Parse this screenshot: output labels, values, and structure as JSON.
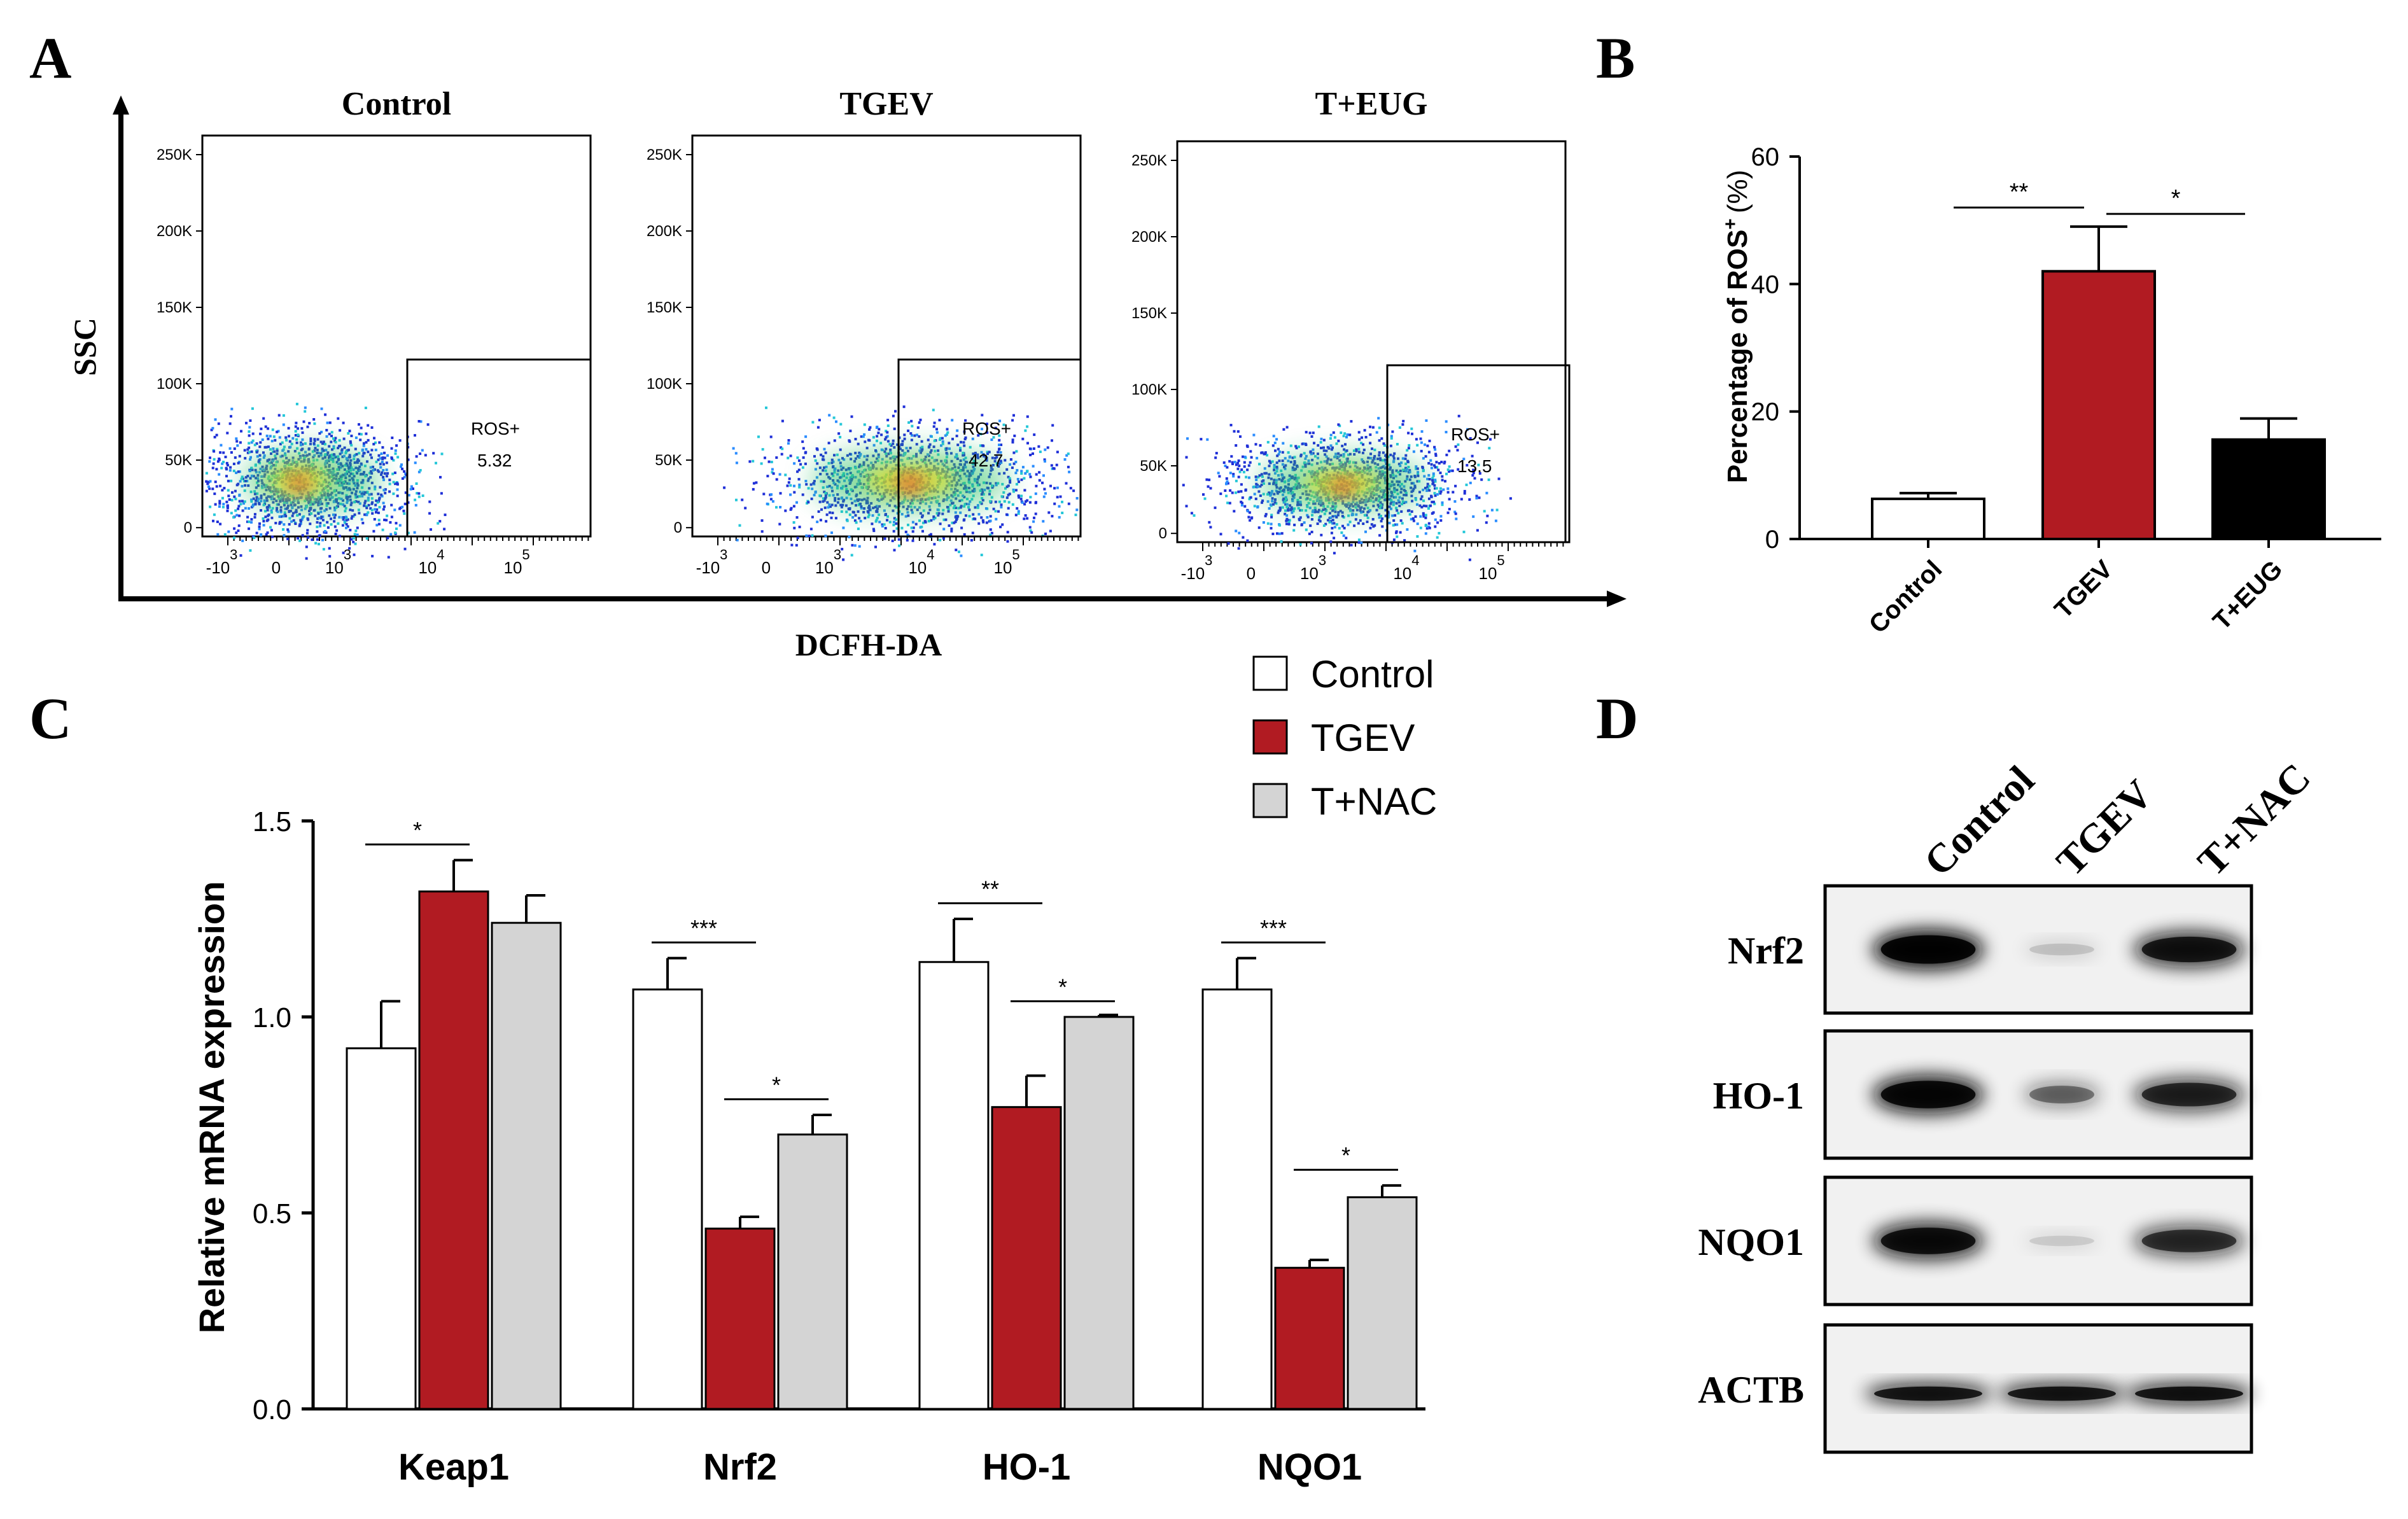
{
  "panel_labels": {
    "a": "A",
    "b": "B",
    "c": "C",
    "d": "D"
  },
  "colors": {
    "control": "#ffffff",
    "tgev": "#b11b22",
    "t_eug": "#000000",
    "t_nac": "#d4d4d4",
    "axis": "#000000"
  },
  "panel_a": {
    "y_axis_label": "SSC",
    "x_axis_label": "DCFH-DA",
    "y_ticks": [
      "250K",
      "200K",
      "150K",
      "100K",
      "50K",
      "0"
    ],
    "x_ticks": [
      {
        "base": "-10",
        "exp": "3"
      },
      {
        "base": "0",
        "exp": ""
      },
      {
        "base": "10",
        "exp": "3"
      },
      {
        "base": "10",
        "exp": "4"
      },
      {
        "base": "10",
        "exp": "5"
      }
    ],
    "gate_label": "ROS+",
    "plots": [
      {
        "title": "Control",
        "ros_value": "5.32"
      },
      {
        "title": "TGEV",
        "ros_value": "42.7"
      },
      {
        "title": "T+EUG",
        "ros_value": "13.5"
      }
    ]
  },
  "chart_data": [
    {
      "type": "bar",
      "panel": "B",
      "categories": [
        "Control",
        "TGEV",
        "T+EUG"
      ],
      "values": [
        6.3,
        42.0,
        15.6
      ],
      "errors": [
        0.9,
        7.0,
        3.3
      ],
      "ylabel_main": "Percentage of ROS",
      "ylabel_sup": "+",
      "ylabel_unit": "(%)",
      "ylim": [
        0,
        60
      ],
      "yticks": [
        0,
        20,
        40,
        60
      ],
      "bar_colors": [
        "#ffffff",
        "#b11b22",
        "#000000"
      ],
      "significance": [
        {
          "from": 0,
          "to": 1,
          "label": "**"
        },
        {
          "from": 1,
          "to": 2,
          "label": "*"
        }
      ]
    },
    {
      "type": "bar",
      "panel": "C",
      "categories": [
        "Keap1",
        "Nrf2",
        "HO-1",
        "NQO1"
      ],
      "series": [
        {
          "name": "Control",
          "color": "#ffffff",
          "values": [
            0.92,
            1.07,
            1.14,
            1.07
          ],
          "errors": [
            0.12,
            0.08,
            0.11,
            0.08
          ]
        },
        {
          "name": "TGEV",
          "color": "#b11b22",
          "values": [
            1.32,
            0.46,
            0.77,
            0.36
          ],
          "errors": [
            0.08,
            0.03,
            0.08,
            0.02
          ]
        },
        {
          "name": "T+NAC",
          "color": "#d4d4d4",
          "values": [
            1.24,
            0.7,
            1.0,
            0.54
          ],
          "errors": [
            0.07,
            0.05,
            0.005,
            0.03
          ]
        }
      ],
      "ylabel": "Relative mRNA expression",
      "ylim": [
        0,
        1.5
      ],
      "yticks": [
        "0.0",
        "0.5",
        "1.0",
        "1.5"
      ],
      "legend_placement": "top-right",
      "significance": [
        {
          "group": 0,
          "from": 0,
          "to": 1,
          "label": "*",
          "y": 1.44
        },
        {
          "group": 1,
          "from": 0,
          "to": 1,
          "label": "***",
          "y": 1.19
        },
        {
          "group": 1,
          "from": 1,
          "to": 2,
          "label": "*",
          "y": 0.79
        },
        {
          "group": 2,
          "from": 0,
          "to": 1,
          "label": "**",
          "y": 1.29
        },
        {
          "group": 2,
          "from": 1,
          "to": 2,
          "label": "*",
          "y": 1.04
        },
        {
          "group": 3,
          "from": 0,
          "to": 1,
          "label": "***",
          "y": 1.19
        },
        {
          "group": 3,
          "from": 1,
          "to": 2,
          "label": "*",
          "y": 0.61
        }
      ]
    }
  ],
  "panel_d": {
    "lanes": [
      "Control",
      "TGEV",
      "T+NAC"
    ],
    "rows": [
      {
        "label": "Nrf2",
        "intensity": [
          1.0,
          0.15,
          0.85
        ]
      },
      {
        "label": "HO-1",
        "intensity": [
          0.95,
          0.45,
          0.75
        ]
      },
      {
        "label": "NQO1",
        "intensity": [
          0.9,
          0.08,
          0.7
        ]
      },
      {
        "label": "ACTB",
        "intensity": [
          0.9,
          0.9,
          0.92
        ]
      }
    ]
  }
}
